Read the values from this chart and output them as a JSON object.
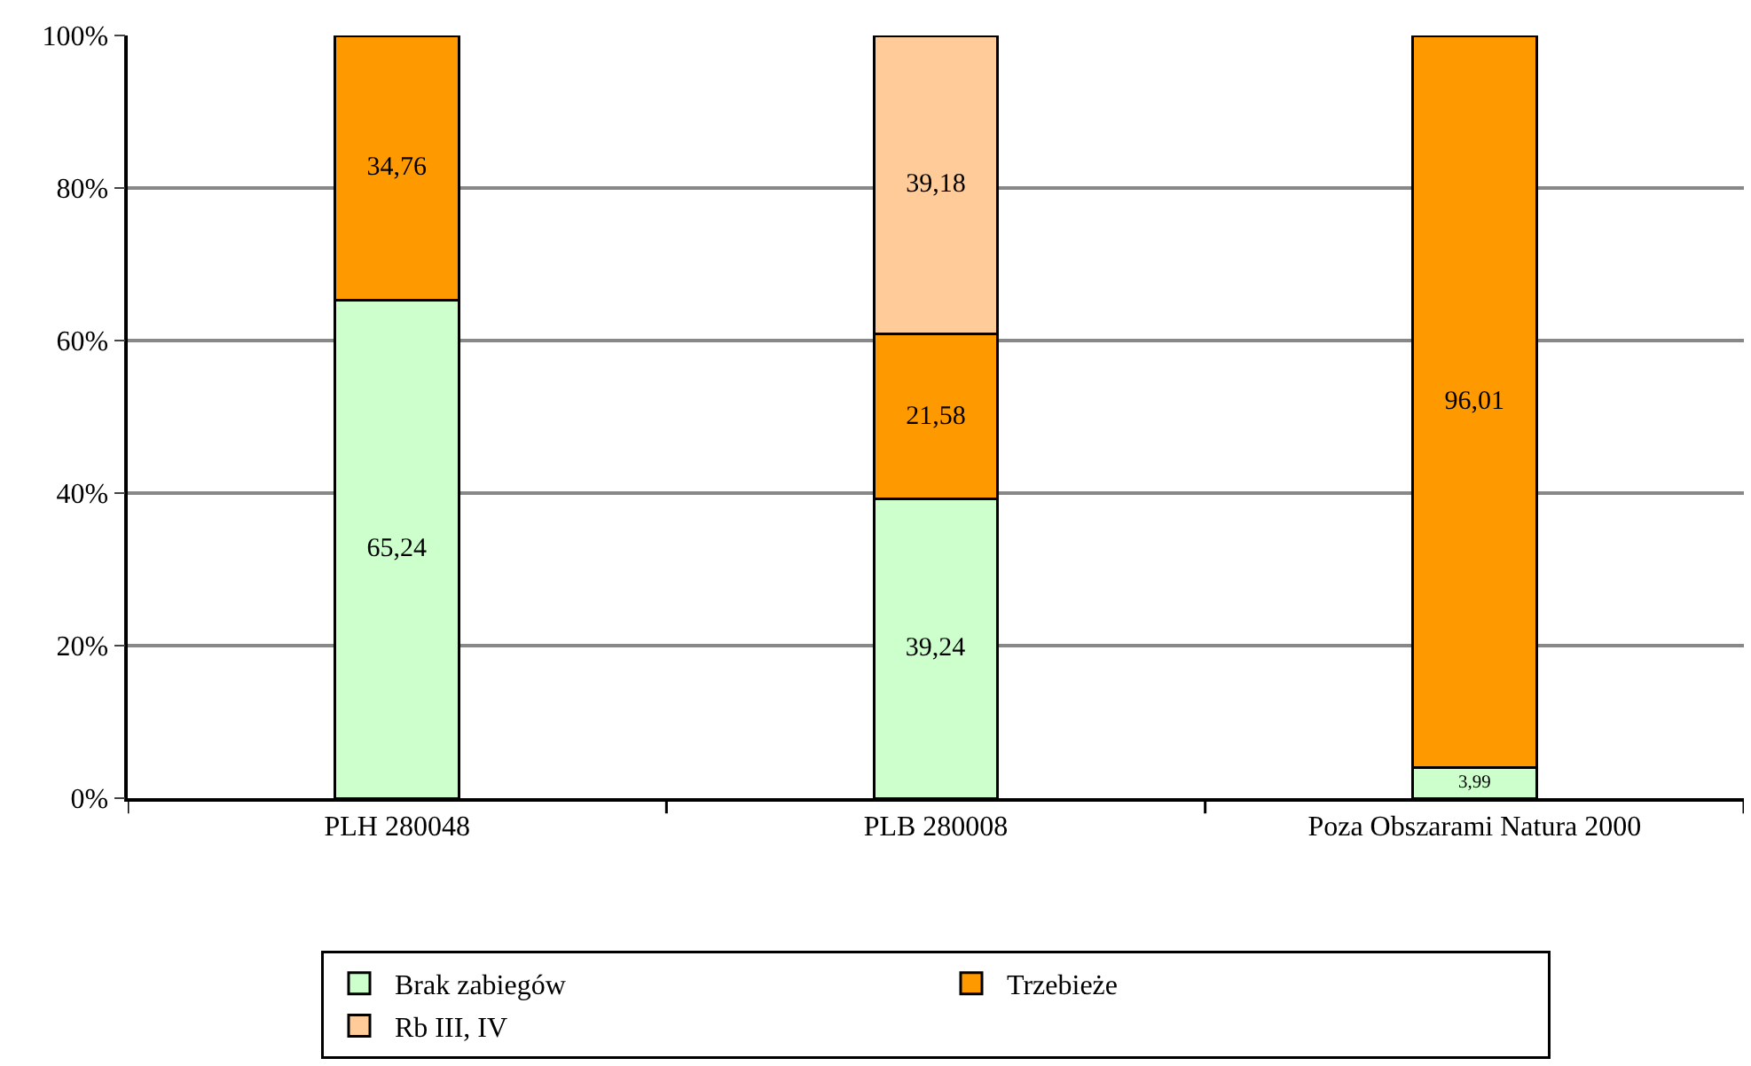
{
  "chart_data": {
    "type": "bar",
    "stacked": true,
    "categories": [
      "PLH 280048",
      "PLB 280008",
      "Poza Obszarami Natura 2000"
    ],
    "series": [
      {
        "name": "Brak zabiegów",
        "color": "#ccffcc",
        "values": [
          65.24,
          39.24,
          3.99
        ],
        "value_labels": [
          "65,24",
          "39,24",
          "3,99"
        ]
      },
      {
        "name": "Trzebieże",
        "color": "#ff9900",
        "values": [
          34.76,
          21.58,
          96.01
        ],
        "value_labels": [
          "34,76",
          "21,58",
          "96,01"
        ]
      },
      {
        "name": "Rb III, IV",
        "color": "#ffcc99",
        "values": [
          null,
          39.18,
          null
        ],
        "value_labels": [
          null,
          "39,18",
          null
        ]
      }
    ],
    "ylim": [
      0,
      100
    ],
    "yticks": [
      {
        "value": 0,
        "label": "0%"
      },
      {
        "value": 20,
        "label": "20%"
      },
      {
        "value": 40,
        "label": "40%"
      },
      {
        "value": 60,
        "label": "60%"
      },
      {
        "value": 80,
        "label": "80%"
      },
      {
        "value": 100,
        "label": "100%"
      }
    ],
    "grid": "y",
    "legend": "bottom"
  }
}
